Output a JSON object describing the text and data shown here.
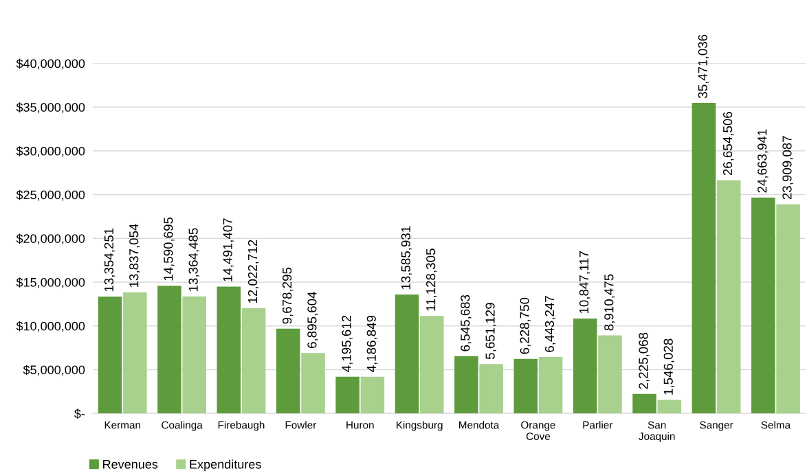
{
  "chart_data": {
    "type": "bar",
    "categories": [
      "Kerman",
      "Coalinga",
      "Firebaugh",
      "Fowler",
      "Huron",
      "Kingsburg",
      "Mendota",
      "Orange Cove",
      "Parlier",
      "San Joaquin",
      "Sanger",
      "Selma"
    ],
    "series": [
      {
        "name": "Revenues",
        "color": "#5e9b3c",
        "values": [
          13354251,
          14590695,
          14491407,
          9678295,
          4195612,
          13585931,
          6545683,
          6228750,
          10847117,
          2225068,
          35471036,
          24663941
        ],
        "value_labels": [
          "13,354,251",
          "14,590,695",
          "14,491,407",
          "9,678,295",
          "4,195,612",
          "13,585,931",
          "6,545,683",
          "6,228,750",
          "10,847,117",
          "2,225,068",
          "35,471,036",
          "24,663,941"
        ]
      },
      {
        "name": "Expenditures",
        "color": "#a9d18e",
        "values": [
          13837054,
          13364485,
          12022712,
          6895604,
          4186849,
          11128305,
          5651129,
          6443247,
          8910475,
          1546028,
          26654506,
          23909087
        ],
        "value_labels": [
          "13,837,054",
          "13,364,485",
          "12,022,712",
          "6,895,604",
          "4,186,849",
          "11,128,305",
          "5,651,129",
          "6,443,247",
          "8,910,475",
          "1,546,028",
          "26,654,506",
          "23,909,087"
        ]
      }
    ],
    "ylim": [
      0,
      40000000
    ],
    "yticks": [
      {
        "value": 0,
        "label": "$-"
      },
      {
        "value": 5000000,
        "label": "$5,000,000"
      },
      {
        "value": 10000000,
        "label": "$10,000,000"
      },
      {
        "value": 15000000,
        "label": "$15,000,000"
      },
      {
        "value": 20000000,
        "label": "$20,000,000"
      },
      {
        "value": 25000000,
        "label": "$25,000,000"
      },
      {
        "value": 30000000,
        "label": "$30,000,000"
      },
      {
        "value": 35000000,
        "label": "$35,000,000"
      },
      {
        "value": 40000000,
        "label": "$40,000,000"
      }
    ],
    "grid": "y",
    "legend": "bottom left"
  }
}
